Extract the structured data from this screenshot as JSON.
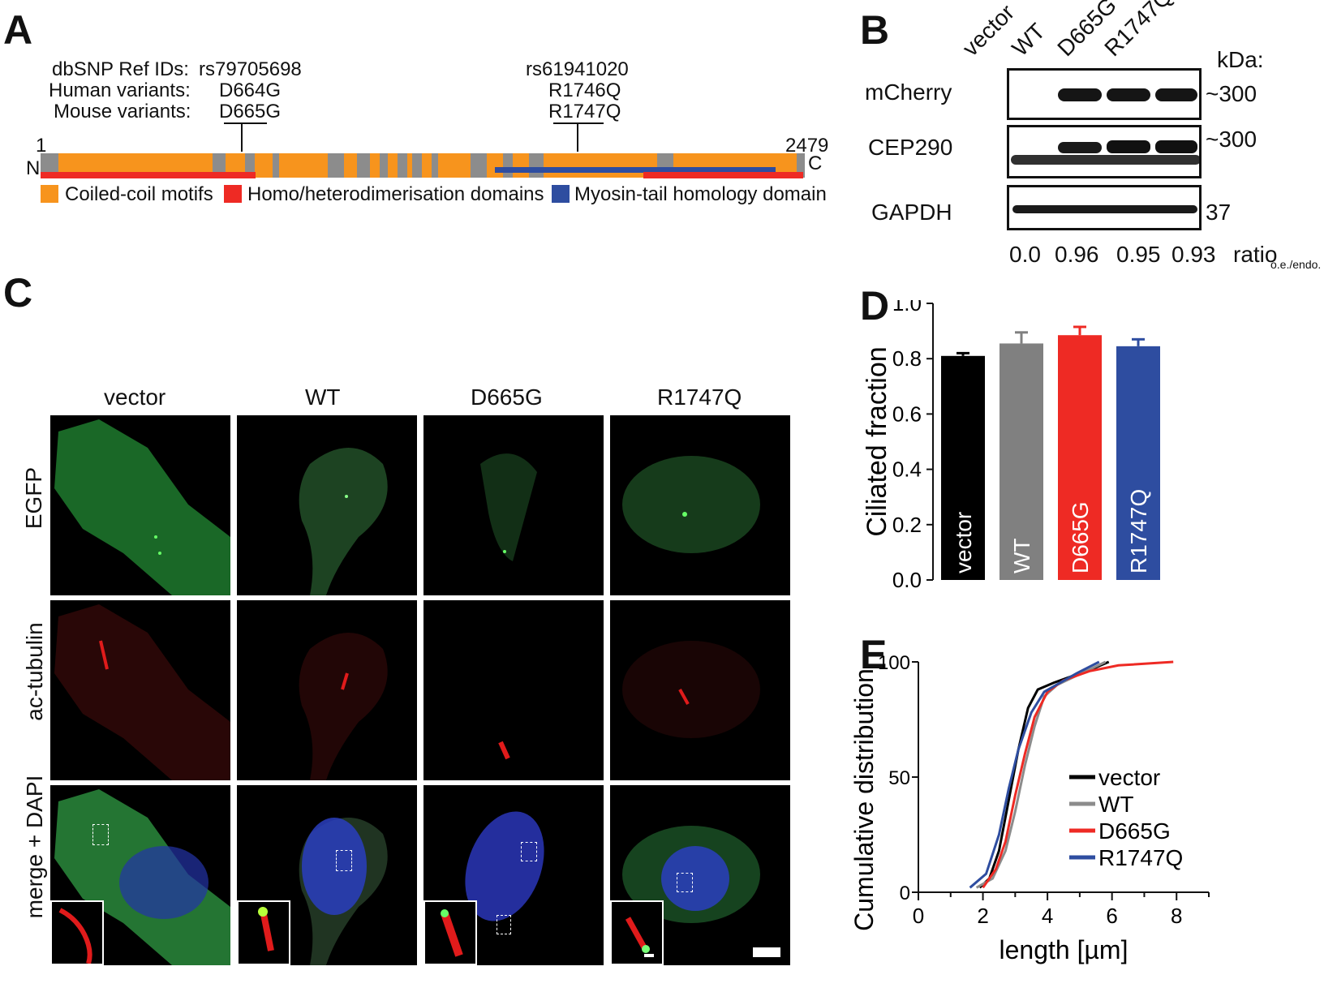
{
  "panel_labels": {
    "a": "A",
    "b": "B",
    "c": "C",
    "d": "D",
    "e": "E"
  },
  "panelA": {
    "rows": [
      "dbSNP Ref IDs:",
      "Human variants:",
      "Mouse variants:"
    ],
    "variant1": {
      "dbsnp": "rs79705698",
      "human": "D664G",
      "mouse": "D665G"
    },
    "variant2": {
      "dbsnp": "rs61941020",
      "human": "R1746Q",
      "mouse": "R1747Q"
    },
    "start": "1",
    "end": "2479",
    "n_term": "N",
    "c_term": "C",
    "legend": [
      {
        "label": "Coiled-coil motifs",
        "color": "#f7941d"
      },
      {
        "label": "Homo/heterodimerisation domains",
        "color": "#ee2a24"
      },
      {
        "label": "Myosin-tail homology domain",
        "color": "#2e4da0"
      }
    ],
    "colors": {
      "coil": "#f7941d",
      "gap": "#8c8c8c",
      "dimer": "#ee2a24",
      "myosin": "#2e4da0"
    }
  },
  "panelB": {
    "lanes": [
      "vector",
      "WT",
      "D665G",
      "R1747Q"
    ],
    "kda_label": "kDa:",
    "rows": [
      {
        "label": "mCherry",
        "kda": "~300"
      },
      {
        "label": "CEP290",
        "kda": "~300"
      },
      {
        "label": "GAPDH",
        "kda": "37"
      }
    ],
    "ratios": [
      "0.0",
      "0.96",
      "0.95",
      "0.93"
    ],
    "ratio_label": "ratio",
    "ratio_sub": "o.e./endo."
  },
  "panelC": {
    "columns": [
      "vector",
      "WT",
      "D665G",
      "R1747Q"
    ],
    "rows": [
      "EGFP",
      "ac-tubulin",
      "merge + DAPI"
    ]
  },
  "chart_data": [
    {
      "type": "bar",
      "ylabel": "Ciliated fraction",
      "categories": [
        "vector",
        "WT",
        "D665G",
        "R1747Q"
      ],
      "values": [
        0.81,
        0.855,
        0.885,
        0.845
      ],
      "errors": [
        0.01,
        0.04,
        0.03,
        0.025
      ],
      "colors": [
        "#000000",
        "#808080",
        "#ee2a24",
        "#2e4da0"
      ],
      "label_colors": [
        "#ffffff",
        "#ffffff",
        "#ffffff",
        "#ffffff"
      ],
      "ylim": [
        0.0,
        1.0
      ],
      "yticks": [
        "0.0",
        "0.2",
        "0.4",
        "0.6",
        "0.8",
        "1.0"
      ]
    },
    {
      "type": "line",
      "xlabel": "length [µm]",
      "ylabel": "Cumulative distribution",
      "xlim": [
        0,
        9
      ],
      "ylim": [
        0,
        100
      ],
      "xticks": [
        "0",
        "2",
        "4",
        "6",
        "8"
      ],
      "yticks": [
        "0",
        "50",
        "100"
      ],
      "legend_position": "bottom-right",
      "series": [
        {
          "name": "vector",
          "color": "#000000",
          "points": [
            [
              1.9,
              2
            ],
            [
              2.2,
              6
            ],
            [
              2.5,
              18
            ],
            [
              2.8,
              40
            ],
            [
              3.1,
              62
            ],
            [
              3.4,
              80
            ],
            [
              3.7,
              88
            ],
            [
              4.2,
              91
            ],
            [
              4.8,
              94
            ],
            [
              5.4,
              97
            ],
            [
              5.9,
              100
            ]
          ]
        },
        {
          "name": "WT",
          "color": "#8c8c8c",
          "points": [
            [
              1.8,
              2
            ],
            [
              2.3,
              6
            ],
            [
              2.7,
              18
            ],
            [
              3.0,
              35
            ],
            [
              3.3,
              55
            ],
            [
              3.6,
              72
            ],
            [
              3.9,
              85
            ],
            [
              4.3,
              90
            ],
            [
              4.9,
              94
            ],
            [
              5.5,
              98
            ],
            [
              5.8,
              100
            ]
          ]
        },
        {
          "name": "D665G",
          "color": "#ee2a24",
          "points": [
            [
              2.0,
              2
            ],
            [
              2.4,
              10
            ],
            [
              2.7,
              22
            ],
            [
              3.0,
              42
            ],
            [
              3.3,
              60
            ],
            [
              3.6,
              76
            ],
            [
              4.0,
              87
            ],
            [
              4.5,
              92
            ],
            [
              5.3,
              96
            ],
            [
              6.2,
              98.5
            ],
            [
              7.9,
              100
            ]
          ]
        },
        {
          "name": "R1747Q",
          "color": "#2e4da0",
          "points": [
            [
              1.6,
              2
            ],
            [
              2.1,
              8
            ],
            [
              2.5,
              25
            ],
            [
              2.8,
              45
            ],
            [
              3.1,
              62
            ],
            [
              3.5,
              78
            ],
            [
              3.9,
              87
            ],
            [
              4.4,
              91
            ],
            [
              4.9,
              95
            ],
            [
              5.6,
              100
            ]
          ]
        }
      ]
    }
  ]
}
